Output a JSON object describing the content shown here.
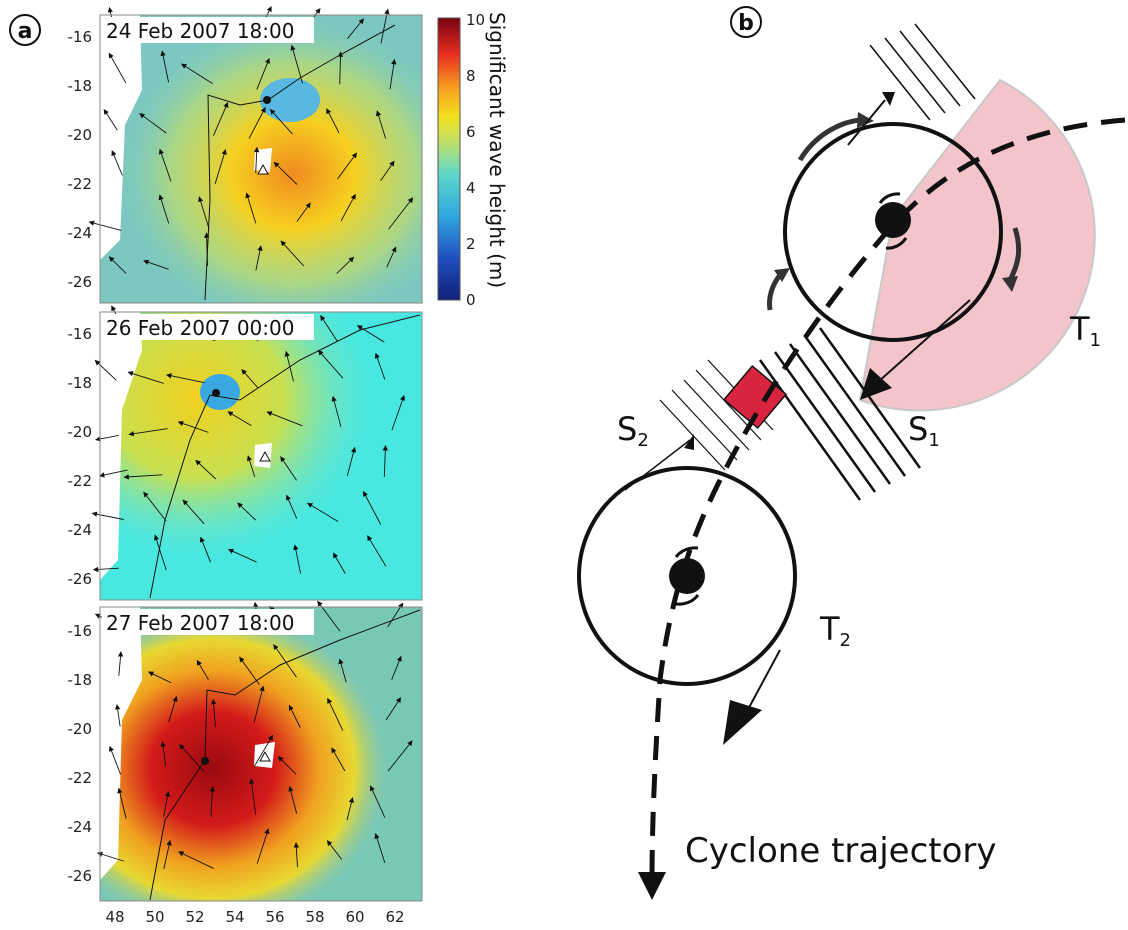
{
  "panel_a": {
    "letter": "a",
    "colorbar": {
      "title": "Significant wave height (m)",
      "ticks": [
        "10",
        "8",
        "6",
        "4",
        "2",
        "0"
      ]
    },
    "lat_ticks": [
      "-16",
      "-18",
      "-20",
      "-22",
      "-24",
      "-26"
    ],
    "lon_ticks": [
      "48",
      "50",
      "52",
      "54",
      "56",
      "58",
      "60",
      "62"
    ],
    "maps": [
      {
        "date": "24 Feb 2007 18:00"
      },
      {
        "date": "26 Feb 2007 00:00"
      },
      {
        "date": "27 Feb 2007 18:00"
      }
    ]
  },
  "panel_b": {
    "letter": "b",
    "t1": {
      "main": "T",
      "sub": "1"
    },
    "t2": {
      "main": "T",
      "sub": "2"
    },
    "s1": {
      "main": "S",
      "sub": "1"
    },
    "s2": {
      "main": "S",
      "sub": "2"
    },
    "trajectory_label": "Cyclone trajectory"
  },
  "colors": {
    "wave_low": "#1a2e8c",
    "wave_mid": "#4fb8d8",
    "wave_green": "#a8d86a",
    "wave_high": "#f2d81c",
    "wave_peak": "#b0101a",
    "quadrant": "#f5c6cc",
    "station": "#d8243f"
  }
}
